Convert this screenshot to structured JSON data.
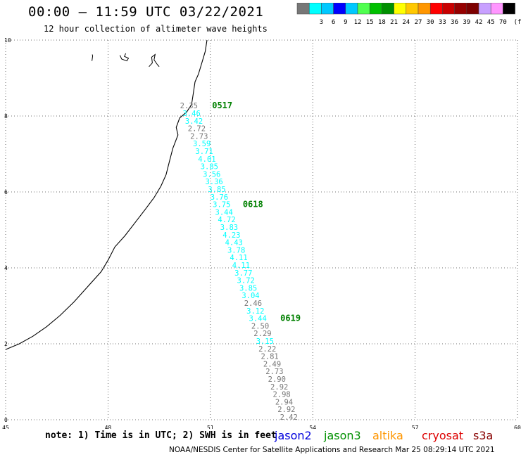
{
  "header": {
    "title": "00:00 – 11:59 UTC 03/22/2021",
    "subtitle": "12 hour collection of altimeter wave heights"
  },
  "legend": {
    "unit": "(ft)",
    "bins": [
      {
        "color": "#777777",
        "label": ""
      },
      {
        "color": "#00ffff",
        "label": "3"
      },
      {
        "color": "#00c8ff",
        "label": "6"
      },
      {
        "color": "#0000ff",
        "label": "9"
      },
      {
        "color": "#00c8ff",
        "label": "12"
      },
      {
        "color": "#50ff50",
        "label": "15"
      },
      {
        "color": "#00c000",
        "label": "18"
      },
      {
        "color": "#009000",
        "label": "21"
      },
      {
        "color": "#ffff00",
        "label": "24"
      },
      {
        "color": "#ffc800",
        "label": "27"
      },
      {
        "color": "#ff9600",
        "label": "30"
      },
      {
        "color": "#ff0000",
        "label": "33"
      },
      {
        "color": "#c80000",
        "label": "36"
      },
      {
        "color": "#960000",
        "label": "39"
      },
      {
        "color": "#7d0000",
        "label": "42"
      },
      {
        "color": "#c8a0ff",
        "label": "45"
      },
      {
        "color": "#ff96ff",
        "label": "70"
      },
      {
        "color": "#000000",
        "label": ""
      }
    ]
  },
  "map": {
    "x_ticks": [
      "45",
      "48",
      "51",
      "54",
      "57",
      "60"
    ],
    "y_ticks": [
      "0",
      "2",
      "4",
      "6",
      "8",
      "10"
    ],
    "lon_range": [
      45,
      60
    ],
    "lat_range": [
      0,
      10
    ],
    "grid": "dotted",
    "coastline": [
      [
        45.0,
        1.85
      ],
      [
        45.4,
        2.0
      ],
      [
        45.8,
        2.2
      ],
      [
        46.2,
        2.45
      ],
      [
        46.6,
        2.75
      ],
      [
        47.0,
        3.1
      ],
      [
        47.4,
        3.5
      ],
      [
        47.8,
        3.9
      ],
      [
        48.0,
        4.2
      ],
      [
        48.2,
        4.55
      ],
      [
        48.5,
        4.85
      ],
      [
        48.8,
        5.2
      ],
      [
        49.1,
        5.55
      ],
      [
        49.35,
        5.85
      ],
      [
        49.55,
        6.15
      ],
      [
        49.7,
        6.45
      ],
      [
        49.8,
        6.8
      ],
      [
        49.9,
        7.15
      ],
      [
        50.05,
        7.5
      ],
      [
        50.0,
        7.7
      ],
      [
        50.1,
        7.95
      ],
      [
        50.3,
        8.1
      ],
      [
        50.45,
        8.3
      ],
      [
        50.5,
        8.6
      ],
      [
        50.55,
        8.9
      ],
      [
        50.65,
        9.1
      ],
      [
        50.75,
        9.4
      ],
      [
        50.85,
        9.7
      ],
      [
        50.9,
        10.0
      ]
    ],
    "islands": [
      [
        [
          47.53,
          9.45
        ],
        [
          47.55,
          9.58
        ],
        [
          47.54,
          9.62
        ]
      ],
      [
        [
          48.35,
          9.6
        ],
        [
          48.4,
          9.5
        ],
        [
          48.55,
          9.45
        ],
        [
          48.6,
          9.52
        ],
        [
          48.48,
          9.57
        ],
        [
          48.52,
          9.65
        ]
      ],
      [
        [
          49.2,
          9.3
        ],
        [
          49.3,
          9.4
        ],
        [
          49.28,
          9.55
        ],
        [
          49.38,
          9.62
        ],
        [
          49.35,
          9.48
        ],
        [
          49.45,
          9.35
        ],
        [
          49.5,
          9.3
        ]
      ]
    ],
    "observations": [
      {
        "lon": 50.37,
        "lat": 8.2,
        "swh": "2.35",
        "color": "#777777"
      },
      {
        "lon": 50.45,
        "lat": 8.0,
        "swh": "3.46",
        "color": "#00ffff"
      },
      {
        "lon": 50.52,
        "lat": 7.8,
        "swh": "3.42",
        "color": "#00ffff"
      },
      {
        "lon": 50.6,
        "lat": 7.6,
        "swh": "2.72",
        "color": "#777777"
      },
      {
        "lon": 50.67,
        "lat": 7.4,
        "swh": "2.73",
        "color": "#777777"
      },
      {
        "lon": 50.75,
        "lat": 7.2,
        "swh": "3.59",
        "color": "#00ffff"
      },
      {
        "lon": 50.82,
        "lat": 7.0,
        "swh": "3.71",
        "color": "#00ffff"
      },
      {
        "lon": 50.9,
        "lat": 6.8,
        "swh": "4.01",
        "color": "#00ffff"
      },
      {
        "lon": 50.97,
        "lat": 6.6,
        "swh": "3.85",
        "color": "#00ffff"
      },
      {
        "lon": 51.04,
        "lat": 6.4,
        "swh": "3.56",
        "color": "#00ffff"
      },
      {
        "lon": 51.11,
        "lat": 6.2,
        "swh": "3.36",
        "color": "#00ffff"
      },
      {
        "lon": 51.19,
        "lat": 6.0,
        "swh": "3.85",
        "color": "#00ffff"
      },
      {
        "lon": 51.26,
        "lat": 5.8,
        "swh": "3.76",
        "color": "#00ffff"
      },
      {
        "lon": 51.33,
        "lat": 5.6,
        "swh": "3.75",
        "color": "#00ffff"
      },
      {
        "lon": 51.4,
        "lat": 5.4,
        "swh": "3.44",
        "color": "#00ffff"
      },
      {
        "lon": 51.48,
        "lat": 5.2,
        "swh": "4.72",
        "color": "#00ffff"
      },
      {
        "lon": 51.55,
        "lat": 5.0,
        "swh": "3.83",
        "color": "#00ffff"
      },
      {
        "lon": 51.62,
        "lat": 4.8,
        "swh": "4.23",
        "color": "#00ffff"
      },
      {
        "lon": 51.69,
        "lat": 4.6,
        "swh": "4.43",
        "color": "#00ffff"
      },
      {
        "lon": 51.76,
        "lat": 4.4,
        "swh": "3.78",
        "color": "#00ffff"
      },
      {
        "lon": 51.83,
        "lat": 4.2,
        "swh": "4.11",
        "color": "#00ffff"
      },
      {
        "lon": 51.9,
        "lat": 4.0,
        "swh": "4.11",
        "color": "#00ffff"
      },
      {
        "lon": 51.97,
        "lat": 3.8,
        "swh": "3.77",
        "color": "#00ffff"
      },
      {
        "lon": 52.04,
        "lat": 3.6,
        "swh": "3.72",
        "color": "#00ffff"
      },
      {
        "lon": 52.11,
        "lat": 3.4,
        "swh": "3.85",
        "color": "#00ffff"
      },
      {
        "lon": 52.18,
        "lat": 3.2,
        "swh": "3.04",
        "color": "#00ffff"
      },
      {
        "lon": 52.25,
        "lat": 3.0,
        "swh": "2.46",
        "color": "#777777"
      },
      {
        "lon": 52.32,
        "lat": 2.8,
        "swh": "3.12",
        "color": "#00ffff"
      },
      {
        "lon": 52.39,
        "lat": 2.6,
        "swh": "3.44",
        "color": "#00ffff"
      },
      {
        "lon": 52.46,
        "lat": 2.4,
        "swh": "2.50",
        "color": "#777777"
      },
      {
        "lon": 52.53,
        "lat": 2.2,
        "swh": "2.29",
        "color": "#777777"
      },
      {
        "lon": 52.6,
        "lat": 2.0,
        "swh": "3.15",
        "color": "#00ffff"
      },
      {
        "lon": 52.67,
        "lat": 1.8,
        "swh": "2.22",
        "color": "#777777"
      },
      {
        "lon": 52.74,
        "lat": 1.6,
        "swh": "2.81",
        "color": "#777777"
      },
      {
        "lon": 52.81,
        "lat": 1.4,
        "swh": "2.49",
        "color": "#777777"
      },
      {
        "lon": 52.88,
        "lat": 1.2,
        "swh": "2.73",
        "color": "#777777"
      },
      {
        "lon": 52.95,
        "lat": 1.0,
        "swh": "2.90",
        "color": "#777777"
      },
      {
        "lon": 53.02,
        "lat": 0.8,
        "swh": "2.92",
        "color": "#777777"
      },
      {
        "lon": 53.09,
        "lat": 0.6,
        "swh": "2.98",
        "color": "#777777"
      },
      {
        "lon": 53.16,
        "lat": 0.4,
        "swh": "2.94",
        "color": "#777777"
      },
      {
        "lon": 53.23,
        "lat": 0.2,
        "swh": "2.92",
        "color": "#777777"
      },
      {
        "lon": 53.3,
        "lat": 0.0,
        "swh": "2.42",
        "color": "#777777"
      }
    ],
    "time_labels": [
      {
        "lon": 51.05,
        "lat": 8.2,
        "text": "0517"
      },
      {
        "lon": 51.95,
        "lat": 5.6,
        "text": "0618"
      },
      {
        "lon": 53.05,
        "lat": 2.6,
        "text": "0619"
      }
    ],
    "time_label_color": "#008000"
  },
  "footer": {
    "note": "note: 1) Time is in UTC; 2) SWH is in feet",
    "credit": "NOAA/NESDIS Center for Satellite Applications and Research   Mar 25 08:29:14 UTC 2021",
    "satellites": [
      {
        "name": "jason2",
        "color": "#0000dd"
      },
      {
        "name": "jason3",
        "color": "#009000"
      },
      {
        "name": "altika",
        "color": "#ff9600"
      },
      {
        "name": "cryosat",
        "color": "#dd0000"
      },
      {
        "name": "s3a",
        "color": "#880000"
      }
    ]
  }
}
